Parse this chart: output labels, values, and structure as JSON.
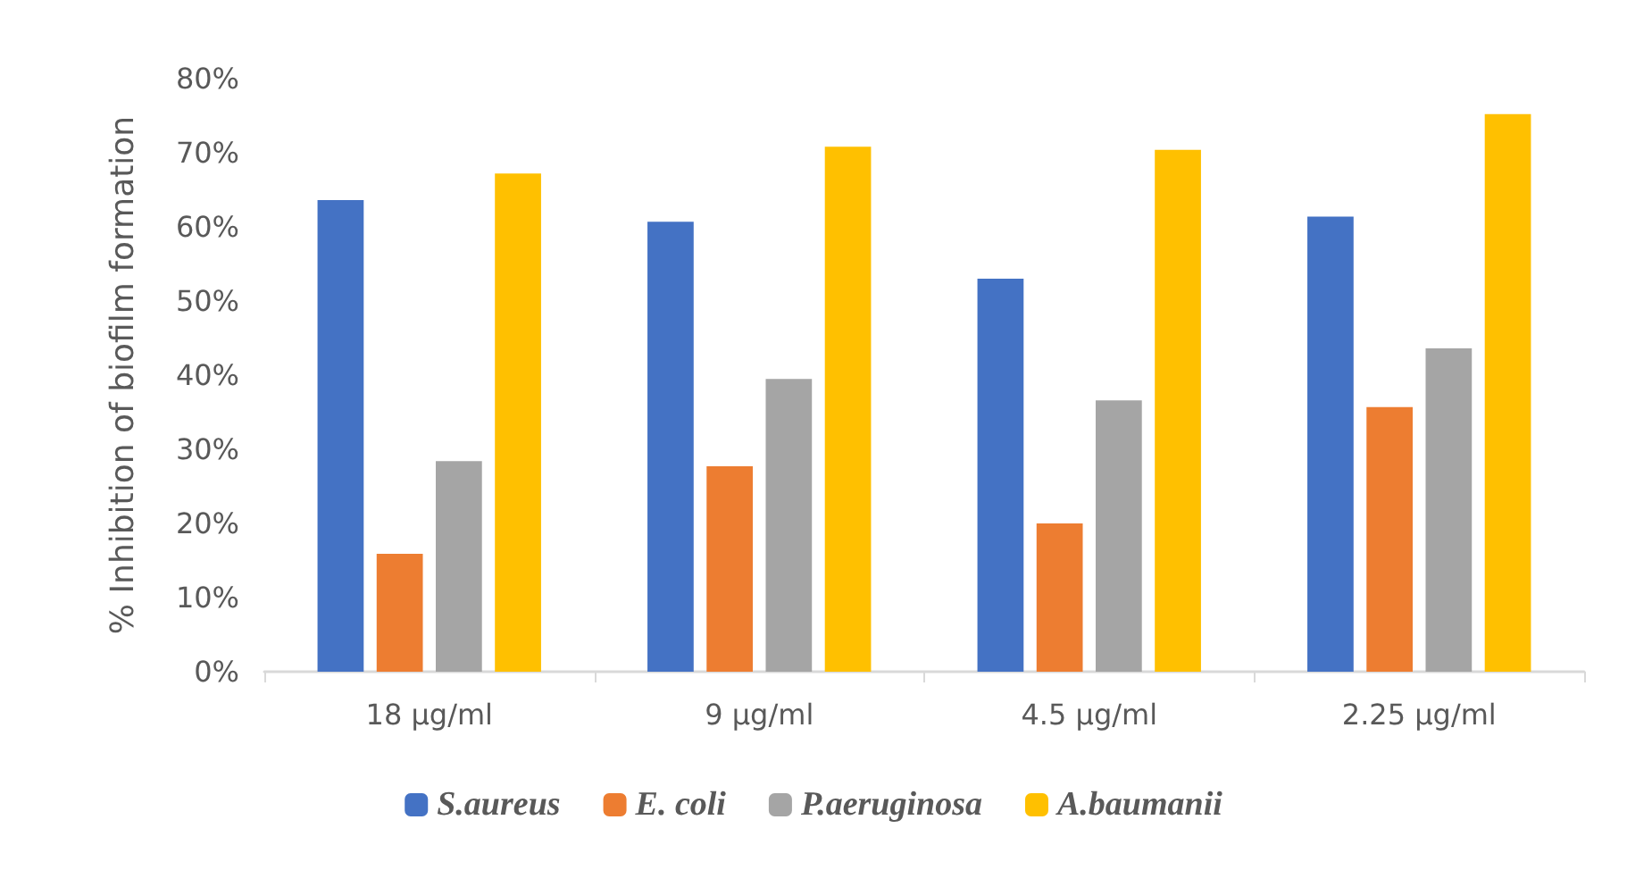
{
  "chart_data": {
    "type": "bar",
    "ylabel": "% Inhibition of biofilm formation",
    "categories": [
      "18 µg/ml",
      "9 µg/ml",
      "4.5 µg/ml",
      "2.25 µg/ml"
    ],
    "series": [
      {
        "name": "S.aureus",
        "color": "#4472c4",
        "values": [
          63.6,
          60.7,
          53.0,
          61.4
        ]
      },
      {
        "name": "E. coli",
        "color": "#ed7d31",
        "values": [
          15.9,
          27.7,
          20.0,
          35.7
        ]
      },
      {
        "name": "P.aeruginosa",
        "color": "#a5a5a5",
        "values": [
          28.4,
          39.5,
          36.6,
          43.6
        ]
      },
      {
        "name": "A.baumanii",
        "color": "#ffc000",
        "values": [
          67.2,
          70.8,
          70.4,
          75.2
        ]
      }
    ],
    "ylim": [
      0,
      80
    ],
    "yticks": [
      {
        "value": 0,
        "label": "0%"
      },
      {
        "value": 10,
        "label": "10%"
      },
      {
        "value": 20,
        "label": "20%"
      },
      {
        "value": 30,
        "label": "30%"
      },
      {
        "value": 40,
        "label": "40%"
      },
      {
        "value": 50,
        "label": "50%"
      },
      {
        "value": 60,
        "label": "60%"
      },
      {
        "value": 70,
        "label": "70%"
      },
      {
        "value": 80,
        "label": "80%"
      }
    ],
    "grid": false,
    "legend": "bottom"
  }
}
